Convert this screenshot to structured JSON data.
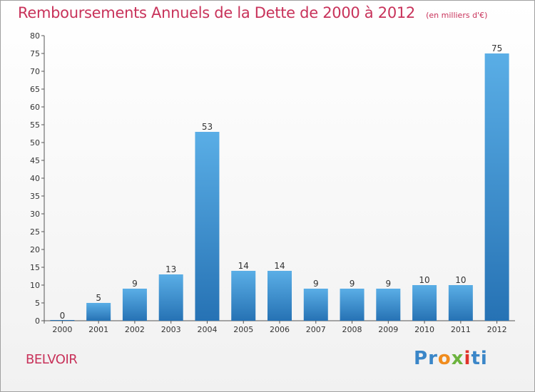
{
  "chart_data": {
    "type": "bar",
    "title": "Remboursements Annuels de la Dette de 2000 à 2012",
    "subtitle": "(en milliers d'€)",
    "categories": [
      "2000",
      "2001",
      "2002",
      "2003",
      "2004",
      "2005",
      "2006",
      "2007",
      "2008",
      "2009",
      "2010",
      "2011",
      "2012"
    ],
    "values": [
      0,
      5,
      9,
      13,
      53,
      14,
      14,
      9,
      9,
      9,
      10,
      10,
      75
    ],
    "ylim": [
      0,
      80
    ],
    "yticks": [
      0,
      5,
      10,
      15,
      20,
      25,
      30,
      35,
      40,
      45,
      50,
      55,
      60,
      65,
      70,
      75,
      80
    ],
    "grid": false,
    "bar_color_top": "#5aaee6",
    "bar_color_bottom": "#2672b4"
  },
  "place_name": "BELVOIR",
  "logo": {
    "letters": [
      "P",
      "r",
      "o",
      "x",
      "i",
      "ti"
    ]
  }
}
